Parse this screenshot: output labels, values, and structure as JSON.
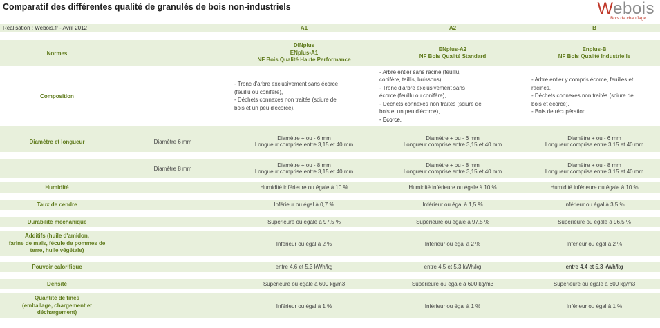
{
  "title": "Comparatif des différentes qualité de granulés de bois non-industriels",
  "logo": {
    "word_first": "W",
    "word_rest": "ebois",
    "tagline": "Bois de chauffage"
  },
  "realisation": "Réalisation : Webois.fr - Avril 2012",
  "classes": [
    "A1",
    "A2",
    "B"
  ],
  "normes": {
    "label": "Normes",
    "a1": [
      "DINplus",
      "ENplus-A1",
      "NF Bois Qualité Haute Performance"
    ],
    "a2": [
      "ENplus-A2",
      "NF Bois Qualité Standard"
    ],
    "b": [
      "Enplus-B",
      "NF Bois Qualité Industrielle"
    ]
  },
  "composition": {
    "label": "Composition",
    "a1": [
      "- Tronc d'arbre exclusivement sans écorce",
      "(feuillu ou conifère),",
      "- Déchets connexes non traités (sciure de",
      "bois et un peu d'écorce)."
    ],
    "a2": [
      "- Arbre entier sans racine (feuillu,",
      "conifère, taillis, buissons),",
      "- Tronc d'arbre exclusivement sans",
      "écorce (feuillu ou conifère),",
      "- Déchets connexes non traités (sciure de",
      "bois et un peu d'écorce),",
      "- Ecorce."
    ],
    "b": [
      "- Arbre entier y compris écorce, feuilles et",
      "racines,",
      "- Déchets connexes non traités (sciure de",
      "bois et écorce),",
      "- Bois de récupération."
    ]
  },
  "diametre": {
    "label": "Diamètre et longueur",
    "rows": [
      {
        "sub": "Diamètre 6 mm",
        "a1": [
          "Diamètre + ou - 6 mm",
          "Longueur comprise entre 3,15 et 40 mm"
        ],
        "a2": [
          "Diamètre + ou - 6 mm",
          "Longueur comprise entre 3,15 et 40 mm"
        ],
        "b": [
          "Diamètre + ou - 6 mm",
          "Longueur comprise entre 3,15 et 40 mm"
        ]
      },
      {
        "sub": "Diamètre 8 mm",
        "a1": [
          "Diamètre + ou - 8 mm",
          "Longueur comprise entre 3,15 et 40 mm"
        ],
        "a2": [
          "Diamètre + ou - 8 mm",
          "Longueur comprise entre 3,15 et 40 mm"
        ],
        "b": [
          "Diamètre + ou - 8 mm",
          "Longueur comprise entre 3,15 et 40 mm"
        ]
      }
    ]
  },
  "humidite": {
    "label": "Humidité",
    "a1": "Humidité inférieure ou égale à 10 %",
    "a2": "Humidité inférieure ou égale à 10 %",
    "b": "Humidité inférieure ou égale à 10 %"
  },
  "cendre": {
    "label": "Taux de cendre",
    "a1": "Inférieur ou égal à 0,7 %",
    "a2": "Inférieur ou égal à 1,5 %",
    "b": "Inférieur ou égal à 3,5 %"
  },
  "durabilite": {
    "label": "Durabilité mechanique",
    "a1": "Supérieure ou égale à 97,5 %",
    "a2": "Supérieure ou égale à 97,5 %",
    "b": "Supérieure ou égale à 96,5 %"
  },
  "additifs": {
    "label": [
      "Additifs (huile d'amidon,",
      "farine de maïs, fécule de pommes de",
      "terre,  huile végétale)"
    ],
    "a1": "Inférieur ou égal à 2 %",
    "a2": "Inférieur ou égal à 2 %",
    "b": "Inférieur ou égal à 2 %"
  },
  "pouvoir": {
    "label": "Pouvoir calorifique",
    "a1": "entre 4,6 et 5,3 kWh/kg",
    "a2": "entre 4,5 et 5,3 kWh/kg",
    "b": "entre 4,4 et 5,3 kWh/kg"
  },
  "densite": {
    "label": "Densité",
    "a1": "Supérieure ou égale à 600 kg/m3",
    "a2": "Supérieure ou égale à 600 kg/m3",
    "b": "Supérieure ou égale à 600 kg/m3"
  },
  "fines": {
    "label": [
      "Quantité de fines",
      "(emballage, chargement et",
      "déchargement)"
    ],
    "a1": "Inférieur ou égal à 1 %",
    "a2": "Inférieur ou égal à 1 %",
    "b": "Inférieur ou égal à 1 %"
  }
}
